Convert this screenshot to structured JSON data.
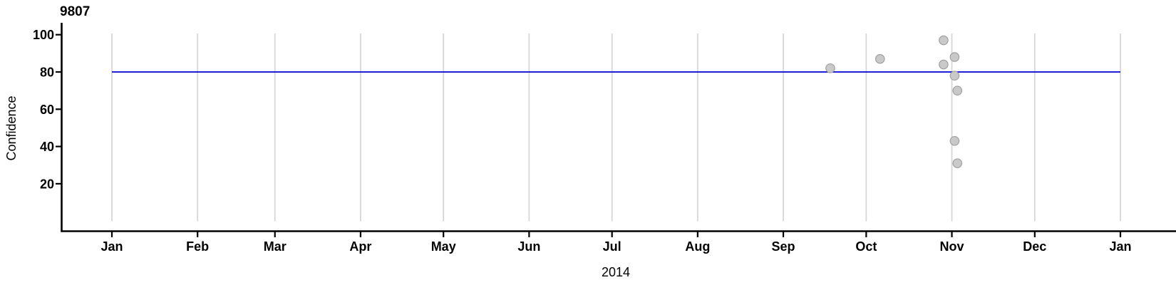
{
  "chart_data": {
    "type": "scatter",
    "title": "9807",
    "xlabel": "2014",
    "ylabel": "Confidence",
    "x_axis": {
      "year_label": "2014",
      "tick_labels": [
        "Jan",
        "Feb",
        "Mar",
        "Apr",
        "May",
        "Jun",
        "Jul",
        "Aug",
        "Sep",
        "Oct",
        "Nov",
        "Dec",
        "Jan"
      ],
      "tick_days_from_jan1": [
        0,
        31,
        59,
        90,
        120,
        151,
        181,
        212,
        243,
        273,
        304,
        334,
        365
      ],
      "range_days": [
        0,
        365
      ],
      "grid": "vertical-gridline-at-each-month"
    },
    "y_axis": {
      "label": "Confidence",
      "tick_values": [
        20,
        40,
        60,
        80,
        100
      ]
    },
    "reference_line": {
      "y": 80,
      "orientation": "horizontal"
    },
    "points": [
      {
        "day_of_year": 260,
        "confidence": 82
      },
      {
        "day_of_year": 278,
        "confidence": 87
      },
      {
        "day_of_year": 301,
        "confidence": 97
      },
      {
        "day_of_year": 301,
        "confidence": 84
      },
      {
        "day_of_year": 305,
        "confidence": 88
      },
      {
        "day_of_year": 305,
        "confidence": 78
      },
      {
        "day_of_year": 306,
        "confidence": 70
      },
      {
        "day_of_year": 305,
        "confidence": 43
      },
      {
        "day_of_year": 306,
        "confidence": 31
      }
    ],
    "colors": {
      "reference_line": "#0000d5",
      "point_fill": "#c9c9c9",
      "point_stroke": "#a0a0a0",
      "gridline": "#d6d6d6",
      "axis": "#000000",
      "text": "#000000"
    }
  }
}
